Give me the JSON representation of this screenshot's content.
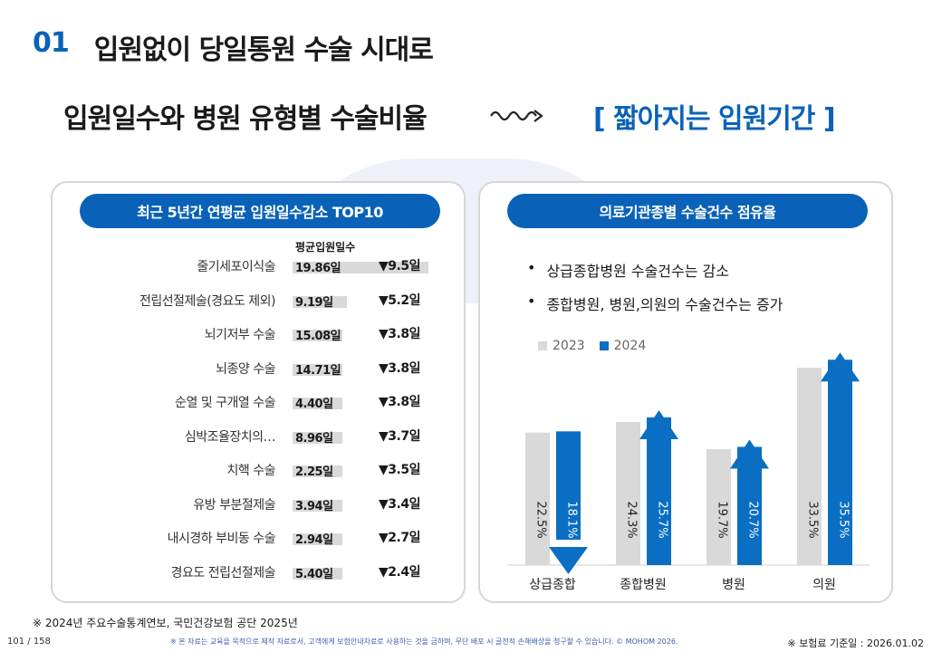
{
  "slide": {
    "number": "01",
    "title": "입원없이 당일통원 수술 시대로",
    "subtitle": "입원일수와 병원 유형별 수술비율",
    "highlight": "[ 짧아지는 입원기간 ]"
  },
  "left_panel": {
    "heading": "최근 5년간 연평균 입원일수감소 TOP10",
    "column_header": "평균입원일수",
    "rows": [
      {
        "label": "줄기세포이식술",
        "days": "19.86일",
        "decrease": "▼9.5일",
        "bar_fraction": 1.0
      },
      {
        "label": "전립선절제술(경요도 제외)",
        "days": "9.19일",
        "decrease": "▼5.2일",
        "bar_fraction": 0.4
      },
      {
        "label": "뇌기저부 수술",
        "days": "15.08일",
        "decrease": "▼3.8일",
        "bar_fraction": 0.28
      },
      {
        "label": "뇌종양 수술",
        "days": "14.71일",
        "decrease": "▼3.8일",
        "bar_fraction": 0.28
      },
      {
        "label": "순열 및 구개열 수술",
        "days": "4.40일",
        "decrease": "▼3.8일",
        "bar_fraction": 0.28
      },
      {
        "label": "심박조율장치의…",
        "days": "8.96일",
        "decrease": "▼3.7일",
        "bar_fraction": 0.27
      },
      {
        "label": "치핵 수술",
        "days": "2.25일",
        "decrease": "▼3.5일",
        "bar_fraction": 0.25
      },
      {
        "label": "유방 부분절제술",
        "days": "3.94일",
        "decrease": "▼3.4일",
        "bar_fraction": 0.23
      },
      {
        "label": "내시경하 부비동 수술",
        "days": "2.94일",
        "decrease": "▼2.7일",
        "bar_fraction": 0.17
      },
      {
        "label": "경요도 전립선절제술",
        "days": "5.40일",
        "decrease": "▼2.4일",
        "bar_fraction": 0.14
      }
    ]
  },
  "right_panel": {
    "heading": "의료기관종별 수술건수 점유율",
    "bullets": [
      "상급종합병원 수술건수는 감소",
      "종합병원, 병원,의원의 수술건수는 증가"
    ]
  },
  "chart_data": {
    "type": "bar",
    "categories": [
      "상급종합",
      "종합병원",
      "병원",
      "의원"
    ],
    "series": [
      {
        "name": "2023",
        "values": [
          22.5,
          24.3,
          19.7,
          33.5
        ],
        "labels": [
          "22.5%",
          "24.3%",
          "19.7%",
          "33.5%"
        ],
        "color": "#d9d9d9"
      },
      {
        "name": "2024",
        "values": [
          18.1,
          25.7,
          20.7,
          35.5
        ],
        "labels": [
          "18.1%",
          "25.7%",
          "20.7%",
          "35.5%"
        ],
        "color": "#0a6fc2"
      }
    ],
    "ylim": [
      0,
      40
    ],
    "legend": "top-left",
    "arrows_2024": [
      "down",
      "up",
      "up",
      "up"
    ]
  },
  "footer": {
    "source": "※ 2024년 주요수술통계연보, 국민건강보험 공단 2025년",
    "pager": "101 / 158",
    "disclaimer": "※ 본 자료는 교육을 목적으로 제작 자료로서, 고객에게 보험안내자료로 사용하는 것을 금하며, 무단 배포 시 글전적 손해배상을 청구할 수 있습니다. © MOHOM 2026.",
    "base_date": "※ 보험료 기준일 : 2026.01.02"
  },
  "colors": {
    "accent": "#0a62b8",
    "bar_2023": "#d9d9d9",
    "bar_2024": "#0a6fc2"
  }
}
